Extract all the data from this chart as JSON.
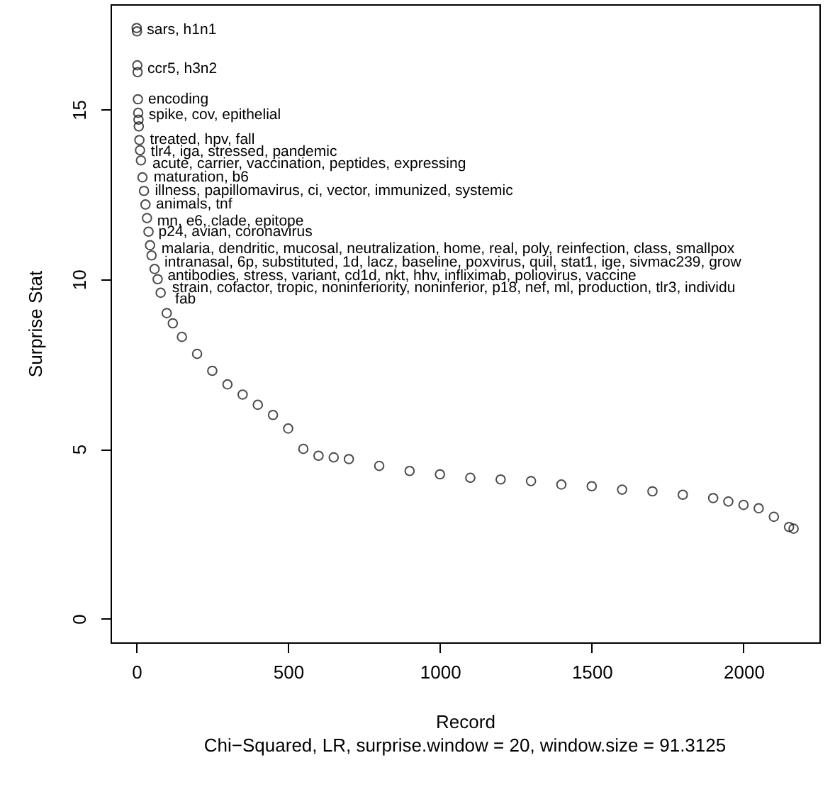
{
  "chart_data": {
    "type": "scatter",
    "xlabel": "Record",
    "ylabel": "Surprise Stat",
    "subtitle": "Chi−Squared, LR, surprise.window = 20, window.size = 91.3125",
    "xlim": [
      -85,
      2250
    ],
    "ylim": [
      -0.7,
      18.1
    ],
    "xticks": [
      0,
      500,
      1000,
      1500,
      2000
    ],
    "yticks": [
      0,
      5,
      10,
      15
    ],
    "grid": false,
    "legend": false,
    "marker": "circle",
    "x": [
      1,
      2,
      3,
      4,
      5,
      6,
      7,
      8,
      10,
      12,
      15,
      20,
      25,
      30,
      35,
      40,
      45,
      50,
      60,
      70,
      80,
      100,
      120,
      150,
      200,
      250,
      300,
      350,
      400,
      450,
      500,
      550,
      600,
      650,
      700,
      800,
      900,
      1000,
      1100,
      1200,
      1300,
      1400,
      1500,
      1600,
      1700,
      1800,
      1900,
      1950,
      2000,
      2050,
      2100,
      2150,
      2165
    ],
    "series": [
      {
        "color": "#000000",
        "values": [
          17.4,
          17.3,
          16.3,
          16.1,
          15.3,
          14.9,
          14.7,
          14.5,
          14.1,
          13.8,
          13.5,
          13.0,
          12.6,
          12.2,
          11.8,
          11.4,
          11.0,
          10.7,
          10.3,
          10.0,
          9.6,
          9.0,
          8.7,
          8.3,
          7.8,
          7.3,
          6.9,
          6.6,
          6.3,
          6.0,
          5.6,
          5.0,
          4.8,
          4.75,
          4.7,
          4.5,
          4.35,
          4.25,
          4.15,
          4.1,
          4.05,
          3.95,
          3.9,
          3.8,
          3.75,
          3.65,
          3.55,
          3.45,
          3.35,
          3.25,
          3.0,
          2.7,
          2.65
        ]
      }
    ],
    "annotations": [
      {
        "text": "sars, h1n1",
        "x": 2,
        "y": 17.35
      },
      {
        "text": "ccr5, h3n2",
        "x": 4,
        "y": 16.2
      },
      {
        "text": "encoding",
        "x": 6,
        "y": 15.3
      },
      {
        "text": "spike, cov, epithelial",
        "x": 8,
        "y": 14.85
      },
      {
        "text": "treated, hpv, fall",
        "x": 12,
        "y": 14.1
      },
      {
        "text": "tlr4, iga, stressed, pandemic",
        "x": 15,
        "y": 13.75
      },
      {
        "text": "acute, carrier, vaccination, peptides, expressing",
        "x": 20,
        "y": 13.4
      },
      {
        "text": "maturation, b6",
        "x": 24,
        "y": 13.0
      },
      {
        "text": "illness, papillomavirus, ci, vector, immunized, systemic",
        "x": 28,
        "y": 12.6
      },
      {
        "text": "animals, tnf",
        "x": 32,
        "y": 12.2
      },
      {
        "text": "mn, e6, clade, epitope",
        "x": 36,
        "y": 11.7
      },
      {
        "text": "p24, avian, coronavirus",
        "x": 40,
        "y": 11.4
      },
      {
        "text": "malaria, dendritic, mucosal, neutralization, home, real, poly, reinfection, class, smallpox",
        "x": 50,
        "y": 10.9
      },
      {
        "text": "intranasal, 6p, substituted, 1d, lacz, baseline, poxvirus, quil, stat1, ige, sivmac239, grow",
        "x": 60,
        "y": 10.5
      },
      {
        "text": "antibodies, stress, variant, cd1d, nkt, hhv, infliximab, poliovirus, vaccine",
        "x": 70,
        "y": 10.1
      },
      {
        "text": "strain, cofactor, tropic, noninferiority, noninferior, p18, nef, ml, production, tlr3, individu",
        "x": 85,
        "y": 9.75
      },
      {
        "text": "fab",
        "x": 95,
        "y": 9.4
      }
    ]
  }
}
